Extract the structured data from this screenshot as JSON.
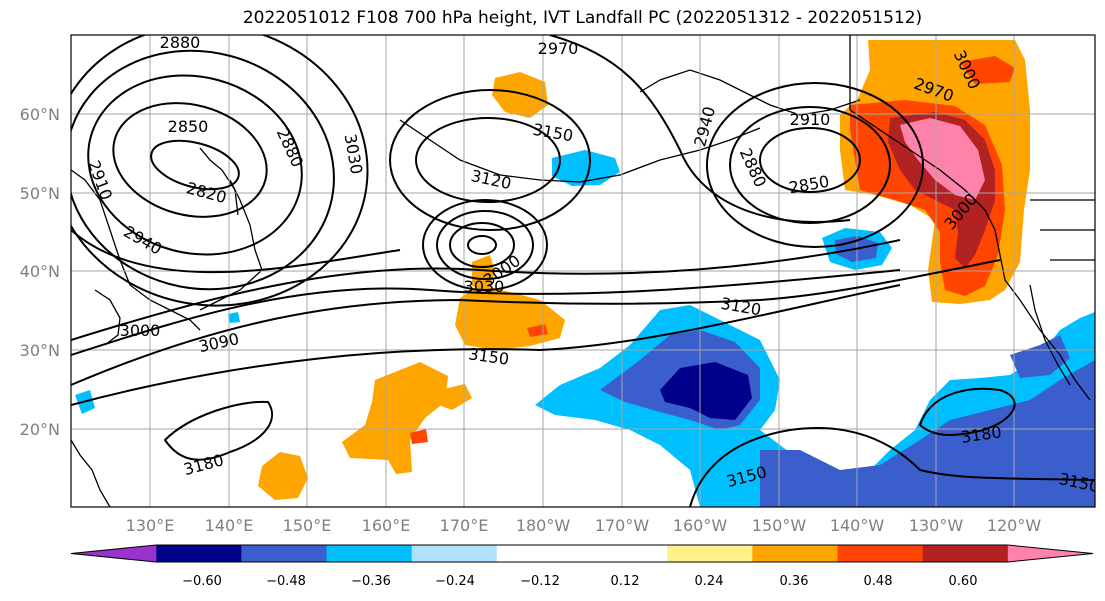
{
  "title": "2022051012 F108 700 hPa height, IVT Landfall PC (2022051312 - 2022051512)",
  "map": {
    "latitude_labels": [
      "60°N",
      "50°N",
      "40°N",
      "30°N",
      "20°N"
    ],
    "longitude_labels": [
      "130°E",
      "140°E",
      "150°E",
      "160°E",
      "170°E",
      "180°W",
      "170°W",
      "160°W",
      "150°W",
      "140°W",
      "130°W",
      "120°W"
    ],
    "contour_labels": [
      "2880",
      "2970",
      "3000",
      "2850",
      "2880",
      "3030",
      "3150",
      "2940",
      "2910",
      "2970",
      "2910",
      "2820",
      "3120",
      "2880",
      "2850",
      "2940",
      "3000",
      "3000",
      "3030",
      "3000",
      "3120",
      "3090",
      "3150",
      "3180",
      "3180",
      "3150",
      "3150"
    ]
  },
  "colorbar": {
    "colors": [
      "#9a32cd",
      "#00008b",
      "#3a5fcd",
      "#00bfff",
      "#b0e2ff",
      "#ffffff",
      "#ffffff",
      "#fff08a",
      "#ffa500",
      "#ff4500",
      "#b22222",
      "#ff82ab"
    ],
    "tick_labels": [
      "−0.60",
      "−0.48",
      "−0.36",
      "−0.24",
      "−0.12",
      "0.12",
      "0.24",
      "0.36",
      "0.48",
      "0.60"
    ]
  }
}
